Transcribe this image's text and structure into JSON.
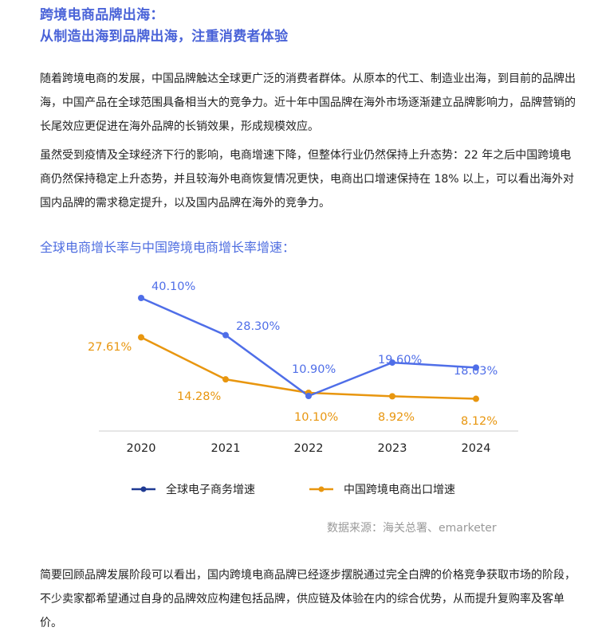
{
  "title": {
    "line1": "跨境电商品牌出海：",
    "line2": "从制造出海到品牌出海，注重消费者体验"
  },
  "paragraphs": {
    "p1": "随着跨境电商的发展，中国品牌触达全球更广泛的消费者群体。从原本的代工、制造业出海，到目前的品牌出海，中国产品在全球范围具备相当大的竞争力。近十年中国品牌在海外市场逐渐建立品牌影响力，品牌营销的长尾效应更促进在海外品牌的长销效果，形成规模效应。",
    "p2": "虽然受到疫情及全球经济下行的影响，电商增速下降，但整体行业仍然保持上升态势：22 年之后中国跨境电商仍然保持稳定上升态势，并且较海外电商恢复情况更快，电商出口增速保持在 18% 以上，可以看出海外对国内品牌的需求稳定提升，以及国内品牌在海外的竞争力。",
    "p3": "简要回顾品牌发展阶段可以看出，国内跨境电商品牌已经逐步摆脱通过完全白牌的价格竞争获取市场的阶段，不少卖家都希望通过自身的品牌效应构建包括品牌，供应链及体验在内的综合优势，从而提升复购率及客单价。"
  },
  "chart_title": "全球电商增长率与中国跨境电商增长率增速：",
  "source": "数据来源：海关总署、emarketer",
  "colors": {
    "title": "#4a63d8",
    "blue_series": "#4f6ee8",
    "blue_legend": "#1f3a93",
    "orange_series": "#e8960f",
    "axis": "#dddddd",
    "source": "#999999"
  },
  "chart_data": {
    "type": "line",
    "title": "全球电商增长率与中国跨境电商增长率增速：",
    "categories": [
      "2020",
      "2021",
      "2022",
      "2023",
      "2024"
    ],
    "series": [
      {
        "name": "全球电子商务增速",
        "values": [
          40.1,
          28.3,
          10.9,
          19.6,
          18.03
        ],
        "labels": [
          "40.10%",
          "28.30%",
          "10.90%",
          "19.60%",
          "18.03%"
        ],
        "color": "#4f6ee8"
      },
      {
        "name": "中国跨境电商出口增速",
        "values": [
          27.61,
          14.28,
          10.1,
          8.92,
          8.12
        ],
        "labels": [
          "27.61%",
          "14.28%",
          "10.10%",
          "8.92%",
          "8.12%"
        ],
        "color": "#e8960f"
      }
    ],
    "xlabel": "",
    "ylabel": "",
    "grid": false,
    "y_axis_visible": false,
    "legend_position": "bottom"
  }
}
